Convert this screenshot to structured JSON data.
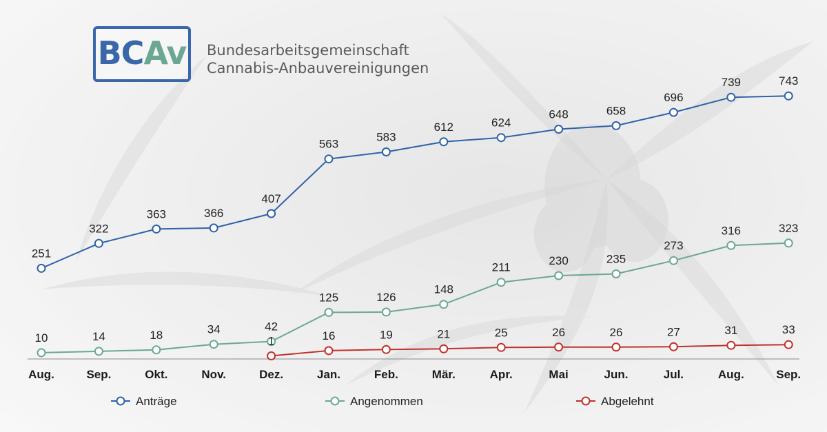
{
  "logo": {
    "part1": "BC",
    "part2": "Av",
    "color1": "#3a67a9",
    "color2": "#6ba792"
  },
  "org": {
    "line1": "Bundesarbeitsgemeinschaft",
    "line2": "Cannabis-Anbauvereinigungen"
  },
  "chart_data": {
    "type": "line",
    "categories": [
      "Aug.",
      "Sep.",
      "Okt.",
      "Nov.",
      "Dez.",
      "Jan.",
      "Feb.",
      "Mär.",
      "Apr.",
      "Mai",
      "Jun.",
      "Jul.",
      "Aug.",
      "Sep."
    ],
    "ylim": [
      0,
      800
    ],
    "grid": false,
    "legend": "bottom",
    "series": [
      {
        "name": "Anträge",
        "color": "#2f62a8",
        "values": [
          251,
          322,
          363,
          366,
          407,
          563,
          583,
          612,
          624,
          648,
          658,
          696,
          739,
          743
        ]
      },
      {
        "name": "Angenommen",
        "color": "#6ba792",
        "values": [
          10,
          14,
          18,
          34,
          42,
          125,
          126,
          148,
          211,
          230,
          235,
          273,
          316,
          323
        ]
      },
      {
        "name": "Abgelehnt",
        "color": "#c0312b",
        "values": [
          null,
          null,
          null,
          null,
          1,
          16,
          19,
          21,
          25,
          26,
          26,
          27,
          31,
          33
        ]
      }
    ]
  }
}
